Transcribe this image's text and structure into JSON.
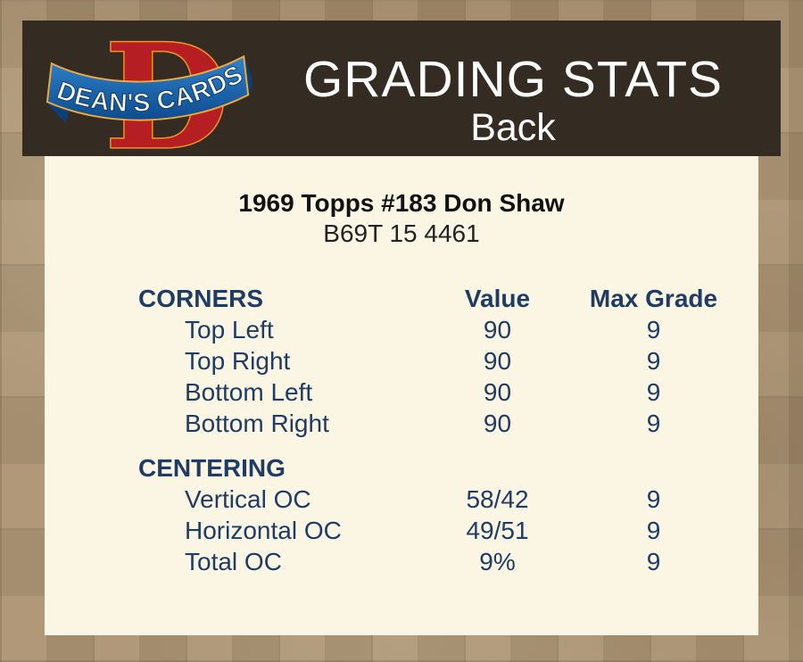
{
  "header": {
    "logo": {
      "monogram": "D",
      "brand": "DEAN'S CARDS"
    },
    "title": "GRADING STATS",
    "subtitle": "Back"
  },
  "card": {
    "title": "1969 Topps #183 Don Shaw",
    "serial": "B69T 15 4461"
  },
  "table": {
    "columns": {
      "value": "Value",
      "max_grade": "Max Grade"
    },
    "sections": [
      {
        "name": "CORNERS",
        "rows": [
          {
            "label": "Top Left",
            "value": "90",
            "max_grade": "9"
          },
          {
            "label": "Top Right",
            "value": "90",
            "max_grade": "9"
          },
          {
            "label": "Bottom Left",
            "value": "90",
            "max_grade": "9"
          },
          {
            "label": "Bottom Right",
            "value": "90",
            "max_grade": "9"
          }
        ]
      },
      {
        "name": "CENTERING",
        "rows": [
          {
            "label": "Vertical OC",
            "value": "58/42",
            "max_grade": "9"
          },
          {
            "label": "Horizontal OC",
            "value": "49/51",
            "max_grade": "9"
          },
          {
            "label": "Total OC",
            "value": "9%",
            "max_grade": "9"
          }
        ]
      }
    ]
  },
  "colors": {
    "page_background": "#a68e6e",
    "header_background": "#342c22",
    "panel_background": "#fbf5e4",
    "table_text_navy": "#1e3c64",
    "title_text": "#ffffff",
    "card_title_text": "#111111",
    "logo_red": "#b51f24",
    "logo_orange": "#f7941d",
    "logo_blue_light": "#2f83cc",
    "logo_blue_dark": "#0d4c8e",
    "logo_text": "#ffffff"
  }
}
